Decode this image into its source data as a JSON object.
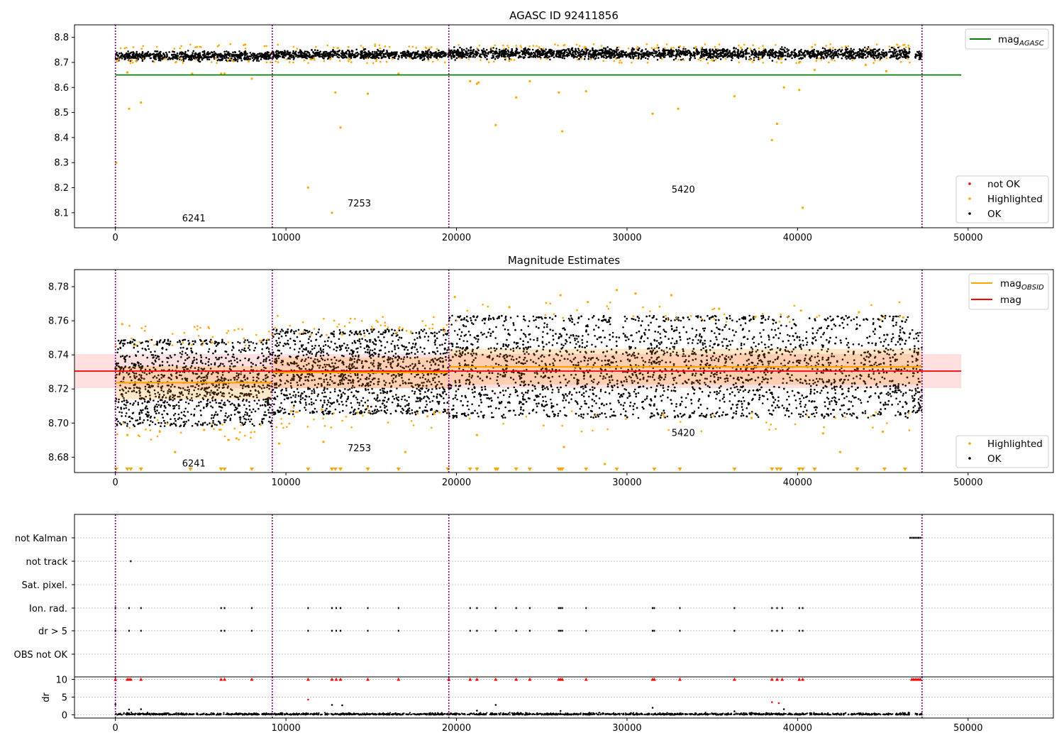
{
  "colors": {
    "ok": "#000000",
    "highlighted": "#ffa500",
    "not_ok": "#ff0000",
    "agasc_line": "#008000",
    "mag_line": "#ff0000",
    "obsid_line": "#ffa500",
    "obs_boundary": "#800080",
    "grid": "#b0b0b0"
  },
  "chart_data": [
    {
      "type": "scatter",
      "title": "AGASC ID 92411856",
      "xlim": [
        -2400,
        55000
      ],
      "ylim": [
        8.04,
        8.85
      ],
      "xticks": [
        0,
        10000,
        20000,
        30000,
        40000,
        50000
      ],
      "xtick_labels": [
        "0",
        "10000",
        "20000",
        "30000",
        "40000",
        "50000"
      ],
      "yticks": [
        8.1,
        8.2,
        8.3,
        8.4,
        8.5,
        8.6,
        8.7,
        8.8
      ],
      "ytick_labels": [
        "8.1",
        "8.2",
        "8.3",
        "8.4",
        "8.5",
        "8.6",
        "8.7",
        "8.8"
      ],
      "obs_boundaries": [
        0,
        9200,
        19550,
        47300
      ],
      "observations": [
        {
          "label": "6241",
          "x": 4600,
          "y": 8.065
        },
        {
          "label": "7253",
          "x": 14300,
          "y": 8.125
        },
        {
          "label": "5420",
          "x": 33300,
          "y": 8.18
        }
      ],
      "mag_agasc": {
        "value": 8.65,
        "x": [
          0,
          49600
        ]
      },
      "ok_band": [
        {
          "x": [
            0,
            9200
          ],
          "center": 8.725,
          "halfwidth": 0.017
        },
        {
          "x": [
            9200,
            19550
          ],
          "center": 8.731,
          "halfwidth": 0.017
        },
        {
          "x": [
            19550,
            46600
          ],
          "center": 8.735,
          "halfwidth": 0.02
        },
        {
          "x": [
            46900,
            47300
          ],
          "center": 8.728,
          "halfwidth": 0.015
        }
      ],
      "highlighted_points": [
        {
          "x": 50,
          "y": 8.3
        },
        {
          "x": 700,
          "y": 8.66
        },
        {
          "x": 800,
          "y": 8.515
        },
        {
          "x": 1500,
          "y": 8.54
        },
        {
          "x": 4500,
          "y": 8.655
        },
        {
          "x": 6200,
          "y": 8.655
        },
        {
          "x": 6400,
          "y": 8.655
        },
        {
          "x": 8000,
          "y": 8.635
        },
        {
          "x": 11300,
          "y": 8.2
        },
        {
          "x": 12700,
          "y": 8.1
        },
        {
          "x": 12900,
          "y": 8.58
        },
        {
          "x": 13200,
          "y": 8.44
        },
        {
          "x": 14800,
          "y": 8.575
        },
        {
          "x": 16600,
          "y": 8.655
        },
        {
          "x": 20800,
          "y": 8.625
        },
        {
          "x": 21200,
          "y": 8.615
        },
        {
          "x": 21300,
          "y": 8.62
        },
        {
          "x": 22300,
          "y": 8.45
        },
        {
          "x": 23500,
          "y": 8.56
        },
        {
          "x": 24300,
          "y": 8.625
        },
        {
          "x": 26000,
          "y": 8.58
        },
        {
          "x": 26200,
          "y": 8.425
        },
        {
          "x": 27600,
          "y": 8.585
        },
        {
          "x": 31500,
          "y": 8.495
        },
        {
          "x": 33000,
          "y": 8.515
        },
        {
          "x": 36300,
          "y": 8.565
        },
        {
          "x": 38500,
          "y": 8.39
        },
        {
          "x": 38800,
          "y": 8.455
        },
        {
          "x": 39200,
          "y": 8.6
        },
        {
          "x": 40100,
          "y": 8.59
        },
        {
          "x": 40300,
          "y": 8.12
        },
        {
          "x": 41000,
          "y": 8.67
        },
        {
          "x": 44000,
          "y": 8.69
        },
        {
          "x": 45200,
          "y": 8.665
        }
      ],
      "legend_upper": {
        "location": "upper right",
        "entries": [
          {
            "label": "mag",
            "sub": "AGASC"
          }
        ]
      },
      "legend_lower": {
        "location": "lower right",
        "entries": [
          "not OK",
          "Highlighted",
          "OK"
        ]
      }
    },
    {
      "type": "scatter",
      "title": "Magnitude Estimates",
      "xlim": [
        -2400,
        55000
      ],
      "ylim": [
        8.671,
        8.79
      ],
      "xticks": [
        0,
        10000,
        20000,
        30000,
        40000,
        50000
      ],
      "xtick_labels": [
        "0",
        "10000",
        "20000",
        "30000",
        "40000",
        "50000"
      ],
      "yticks": [
        8.68,
        8.7,
        8.72,
        8.74,
        8.76,
        8.78
      ],
      "ytick_labels": [
        "8.68",
        "8.70",
        "8.72",
        "8.74",
        "8.76",
        "8.78"
      ],
      "obs_boundaries": [
        0,
        9200,
        19550,
        47300
      ],
      "observations": [
        {
          "label": "6241",
          "x": 4600,
          "y": 8.6745
        },
        {
          "label": "7253",
          "x": 14300,
          "y": 8.6835
        },
        {
          "label": "5420",
          "x": 33300,
          "y": 8.6925
        }
      ],
      "mag": {
        "value": 8.7305,
        "band": [
          8.7205,
          8.7405
        ],
        "x": [
          -2400,
          49600
        ]
      },
      "mag_obsid": [
        {
          "x": [
            0,
            9200
          ],
          "value": 8.7237,
          "band": [
            8.714,
            8.7335
          ]
        },
        {
          "x": [
            9200,
            19550
          ],
          "value": 8.7297,
          "band": [
            8.7205,
            8.7385
          ]
        },
        {
          "x": [
            19550,
            46900
          ],
          "value": 8.733,
          "band": [
            8.7225,
            8.7435
          ]
        },
        {
          "x": [
            46900,
            47300
          ],
          "value": 8.733,
          "band": [
            8.7225,
            8.7435
          ]
        }
      ],
      "ok_spread": [
        {
          "x": [
            0,
            9200
          ],
          "low": 8.698,
          "high": 8.749
        },
        {
          "x": [
            9200,
            19550
          ],
          "low": 8.705,
          "high": 8.755
        },
        {
          "x": [
            19550,
            46600
          ],
          "low": 8.703,
          "high": 8.763
        },
        {
          "x": [
            46700,
            47300
          ],
          "low": 8.705,
          "high": 8.755
        }
      ],
      "highlighted_points": [
        {
          "x": 400,
          "y": 8.758
        },
        {
          "x": 700,
          "y": 8.693
        },
        {
          "x": 2600,
          "y": 8.695
        },
        {
          "x": 3500,
          "y": 8.683
        },
        {
          "x": 5200,
          "y": 8.696
        },
        {
          "x": 7100,
          "y": 8.691
        },
        {
          "x": 9200,
          "y": 8.752
        },
        {
          "x": 9600,
          "y": 8.688
        },
        {
          "x": 10300,
          "y": 8.707
        },
        {
          "x": 12100,
          "y": 8.708
        },
        {
          "x": 12200,
          "y": 8.689
        },
        {
          "x": 13300,
          "y": 8.752
        },
        {
          "x": 14200,
          "y": 8.706
        },
        {
          "x": 16500,
          "y": 8.753
        },
        {
          "x": 17000,
          "y": 8.683
        },
        {
          "x": 18300,
          "y": 8.704
        },
        {
          "x": 19300,
          "y": 8.754
        },
        {
          "x": 19900,
          "y": 8.774
        },
        {
          "x": 21200,
          "y": 8.693
        },
        {
          "x": 23100,
          "y": 8.768
        },
        {
          "x": 26100,
          "y": 8.775
        },
        {
          "x": 26300,
          "y": 8.686
        },
        {
          "x": 27700,
          "y": 8.771
        },
        {
          "x": 28700,
          "y": 8.676
        },
        {
          "x": 29400,
          "y": 8.778
        },
        {
          "x": 30500,
          "y": 8.776
        },
        {
          "x": 32100,
          "y": 8.705
        },
        {
          "x": 32600,
          "y": 8.775
        },
        {
          "x": 35400,
          "y": 8.767
        },
        {
          "x": 37300,
          "y": 8.703
        },
        {
          "x": 40200,
          "y": 8.766
        },
        {
          "x": 41500,
          "y": 8.694
        },
        {
          "x": 42500,
          "y": 8.683
        },
        {
          "x": 43600,
          "y": 8.765
        },
        {
          "x": 45000,
          "y": 8.695
        },
        {
          "x": 46200,
          "y": 8.762
        }
      ],
      "below_range_marks": [
        50,
        700,
        900,
        1500,
        4400,
        6200,
        6400,
        8000,
        11300,
        12700,
        12900,
        13200,
        14800,
        16600,
        19500,
        20800,
        21200,
        22300,
        22400,
        23500,
        24300,
        26000,
        26100,
        26200,
        27600,
        29400,
        31600,
        33100,
        36300,
        38500,
        38800,
        39000,
        40100,
        40300,
        41000,
        43500,
        45100,
        46300
      ],
      "legend_upper": {
        "location": "upper right",
        "entries": [
          {
            "label": "mag",
            "sub": "OBSID"
          },
          {
            "label": "mag",
            "sub": ""
          }
        ]
      },
      "legend_lower": {
        "location": "lower right",
        "entries": [
          "Highlighted",
          "OK"
        ]
      }
    },
    {
      "type": "scatter",
      "title": "",
      "xlim": [
        -2400,
        55000
      ],
      "categories": [
        "not Kalman",
        "not track",
        "Sat. pixel.",
        "Ion. rad.",
        "dr > 5",
        "OBS not OK"
      ],
      "obs_boundaries": [
        0,
        9200,
        19550,
        47300
      ],
      "flags": {
        "not Kalman": [
          46600,
          46700,
          46800,
          46900,
          47000,
          47100,
          47200,
          19550
        ],
        "not track": [
          900
        ],
        "Sat. pixel.": [],
        "Ion. rad.": [
          0,
          800,
          1500,
          6200,
          6400,
          8000,
          11300,
          12700,
          12950,
          13200,
          14800,
          16600,
          20800,
          21200,
          22300,
          23500,
          24300,
          26000,
          26100,
          26200,
          27600,
          31500,
          31600,
          33100,
          36300,
          38500,
          38800,
          39100,
          40100,
          40300
        ],
        "dr > 5": [
          0,
          800,
          1500,
          6200,
          6400,
          8000,
          11300,
          12700,
          12950,
          13200,
          14800,
          16600,
          20800,
          21200,
          22300,
          23500,
          24300,
          26000,
          26100,
          26200,
          27600,
          31500,
          31600,
          33100,
          36300,
          38500,
          38800,
          39100,
          40100,
          40300
        ],
        "OBS not OK": []
      },
      "dr_panel": {
        "ylabel": "dr",
        "ylim": [
          -0.5,
          10.5
        ],
        "yticks": [
          0,
          5,
          10
        ],
        "ytick_labels": [
          "0",
          "5",
          "10"
        ],
        "xticks": [
          0,
          10000,
          20000,
          30000,
          40000,
          50000
        ],
        "xtick_labels": [
          "0",
          "10000",
          "20000",
          "30000",
          "40000",
          "50000"
        ],
        "clipped_at_10": [
          0,
          700,
          800,
          900,
          1500,
          6200,
          6400,
          8000,
          11300,
          12700,
          12950,
          13200,
          14800,
          16600,
          19550,
          20800,
          21200,
          22300,
          23500,
          24300,
          26000,
          26100,
          26200,
          27600,
          31500,
          31600,
          33100,
          36300,
          38500,
          38800,
          39100,
          40100,
          40300,
          46700,
          46800,
          46900,
          47000,
          47100,
          47200
        ],
        "red_points": [
          {
            "x": 11300,
            "y": 4.3
          },
          {
            "x": 38500,
            "y": 3.6
          },
          {
            "x": 38900,
            "y": 3.3
          }
        ],
        "black_points": [
          {
            "x": 0,
            "y": 3.0
          },
          {
            "x": 800,
            "y": 1.5
          },
          {
            "x": 1500,
            "y": 1.6
          },
          {
            "x": 12700,
            "y": 2.8
          },
          {
            "x": 13300,
            "y": 2.7
          },
          {
            "x": 22300,
            "y": 2.8
          },
          {
            "x": 31500,
            "y": 2.0
          },
          {
            "x": 39200,
            "y": 1.6
          },
          {
            "x": 21200,
            "y": 1.2
          },
          {
            "x": 26100,
            "y": 1.1
          },
          {
            "x": 36300,
            "y": 1.0
          }
        ]
      }
    }
  ]
}
